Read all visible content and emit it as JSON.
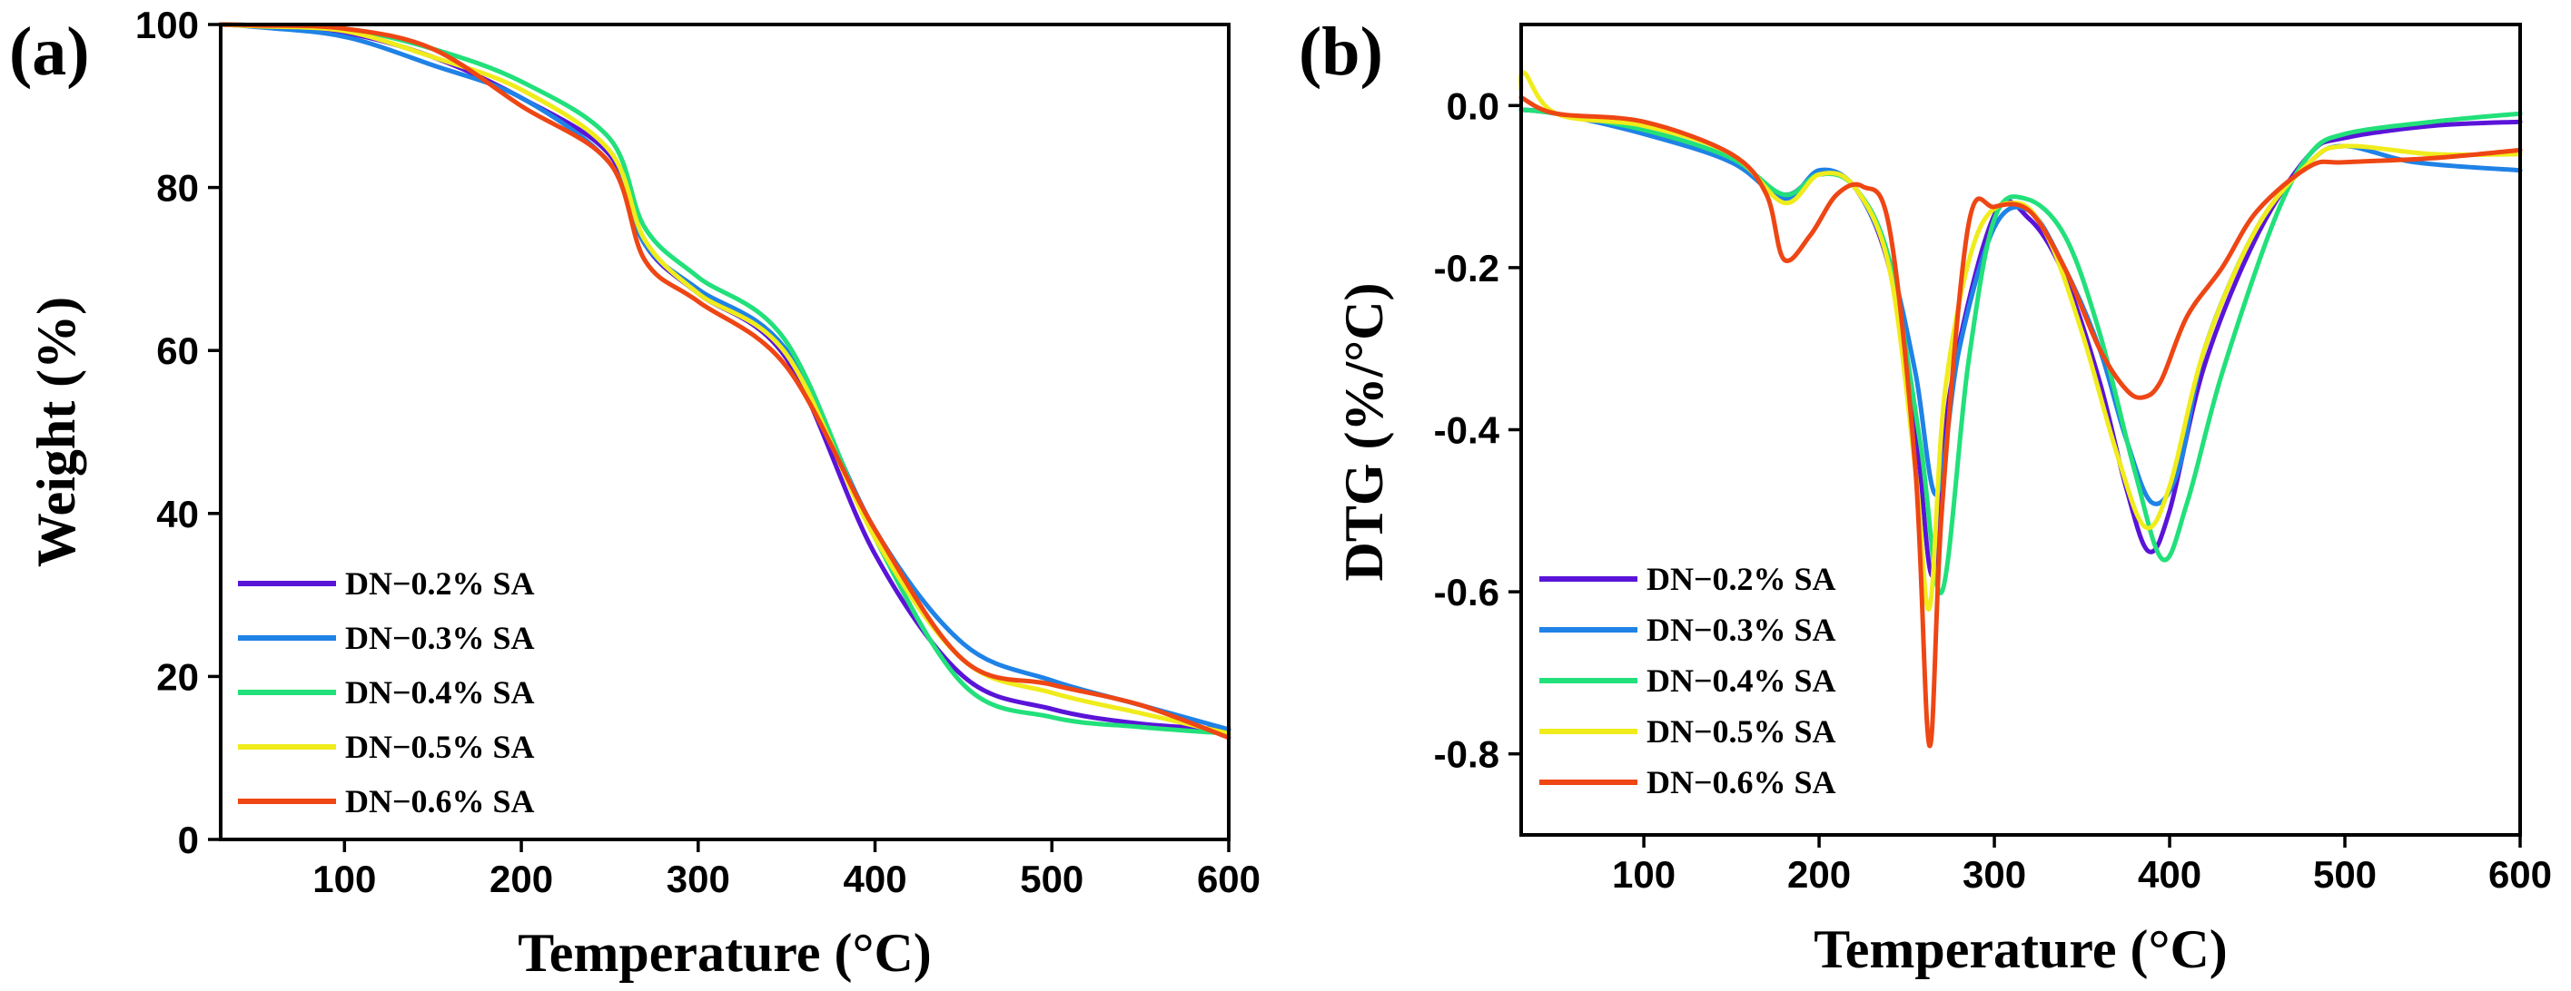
{
  "chart_data": [
    {
      "type": "line",
      "panel_label": "(a)",
      "title": "",
      "xlabel": "Temperature (°C)",
      "ylabel": "Weight (%)",
      "xlim": [
        30,
        600
      ],
      "ylim": [
        0,
        100
      ],
      "xticks": [
        100,
        200,
        300,
        400,
        500,
        600
      ],
      "yticks": [
        0,
        20,
        40,
        60,
        80,
        100
      ],
      "legend_position": "bottom-left",
      "grid": false,
      "series": [
        {
          "name": "DN−0.2% SA",
          "color": "#5a14d8",
          "x": [
            30,
            50,
            100,
            150,
            200,
            250,
            270,
            300,
            350,
            400,
            450,
            500,
            550,
            600
          ],
          "y": [
            100,
            99.8,
            99,
            96,
            91,
            84,
            73,
            67,
            59,
            35,
            20,
            16,
            14.2,
            13.5
          ]
        },
        {
          "name": "DN−0.3% SA",
          "color": "#1f82e6",
          "x": [
            30,
            50,
            100,
            150,
            200,
            250,
            270,
            300,
            350,
            400,
            450,
            500,
            550,
            600
          ],
          "y": [
            100,
            99.7,
            98.5,
            95,
            91,
            83,
            73,
            67.5,
            60,
            38,
            24,
            19.5,
            16.5,
            13.5
          ]
        },
        {
          "name": "DN−0.4% SA",
          "color": "#22e07a",
          "x": [
            30,
            50,
            100,
            150,
            200,
            250,
            270,
            300,
            350,
            400,
            450,
            500,
            550,
            600
          ],
          "y": [
            100,
            99.9,
            99.5,
            97,
            93,
            86,
            75,
            69,
            61,
            37,
            19,
            15,
            13.8,
            13
          ]
        },
        {
          "name": "DN−0.5% SA",
          "color": "#f0ec1c",
          "x": [
            30,
            50,
            100,
            150,
            200,
            250,
            270,
            300,
            350,
            400,
            450,
            500,
            550,
            600
          ],
          "y": [
            100,
            99.8,
            99.2,
            96,
            92,
            84.5,
            73.5,
            67,
            59.5,
            37,
            22,
            18,
            15.5,
            13
          ]
        },
        {
          "name": "DN−0.6% SA",
          "color": "#ee4614",
          "x": [
            30,
            50,
            100,
            150,
            200,
            250,
            270,
            300,
            350,
            400,
            450,
            500,
            550,
            600
          ],
          "y": [
            100,
            99.9,
            99.5,
            97,
            90,
            83,
            71,
            66,
            58,
            38,
            22,
            19,
            16.5,
            12.5
          ]
        }
      ]
    },
    {
      "type": "line",
      "panel_label": "(b)",
      "title": "",
      "xlabel": "Temperature (°C)",
      "ylabel": "DTG  (%/°C)",
      "xlim": [
        30,
        600
      ],
      "ylim": [
        -0.9,
        0.1
      ],
      "xticks": [
        100,
        200,
        300,
        400,
        500,
        600
      ],
      "yticks": [
        0.0,
        -0.2,
        -0.4,
        -0.6,
        -0.8
      ],
      "ytick_labels": [
        "0.0",
        "-0.2",
        "-0.4",
        "-0.6",
        "-0.8"
      ],
      "legend_position": "bottom-left",
      "grid": false,
      "series": [
        {
          "name": "DN−0.2% SA",
          "color": "#5a14d8",
          "x": [
            30,
            50,
            100,
            150,
            180,
            200,
            220,
            240,
            255,
            265,
            275,
            300,
            320,
            340,
            360,
            375,
            388,
            400,
            420,
            450,
            480,
            500,
            550,
            600
          ],
          "y": [
            -0.005,
            -0.01,
            -0.03,
            -0.07,
            -0.11,
            -0.085,
            -0.1,
            -0.2,
            -0.4,
            -0.58,
            -0.35,
            -0.135,
            -0.14,
            -0.21,
            -0.34,
            -0.47,
            -0.55,
            -0.5,
            -0.32,
            -0.16,
            -0.06,
            -0.04,
            -0.025,
            -0.02
          ]
        },
        {
          "name": "DN−0.3% SA",
          "color": "#1f82e6",
          "x": [
            30,
            50,
            100,
            150,
            180,
            200,
            220,
            240,
            255,
            267,
            280,
            300,
            320,
            340,
            360,
            375,
            390,
            405,
            420,
            450,
            480,
            500,
            540,
            600
          ],
          "y": [
            -0.005,
            -0.01,
            -0.035,
            -0.07,
            -0.115,
            -0.08,
            -0.1,
            -0.19,
            -0.33,
            -0.48,
            -0.3,
            -0.15,
            -0.13,
            -0.2,
            -0.3,
            -0.41,
            -0.49,
            -0.45,
            -0.3,
            -0.15,
            -0.07,
            -0.05,
            -0.07,
            -0.08
          ]
        },
        {
          "name": "DN−0.4% SA",
          "color": "#22e07a",
          "x": [
            30,
            50,
            100,
            150,
            180,
            200,
            220,
            240,
            258,
            270,
            285,
            300,
            318,
            340,
            360,
            380,
            396,
            410,
            430,
            460,
            480,
            500,
            550,
            600
          ],
          "y": [
            -0.005,
            -0.01,
            -0.03,
            -0.065,
            -0.11,
            -0.085,
            -0.1,
            -0.19,
            -0.42,
            -0.6,
            -0.32,
            -0.14,
            -0.115,
            -0.16,
            -0.28,
            -0.45,
            -0.56,
            -0.49,
            -0.33,
            -0.14,
            -0.06,
            -0.035,
            -0.02,
            -0.01
          ]
        },
        {
          "name": "DN−0.5% SA",
          "color": "#f0ec1c",
          "x": [
            30,
            32,
            50,
            100,
            150,
            180,
            200,
            220,
            240,
            255,
            263,
            272,
            290,
            312,
            330,
            350,
            370,
            386,
            400,
            420,
            450,
            480,
            500,
            550,
            600
          ],
          "y": [
            0.02,
            0.04,
            -0.01,
            -0.025,
            -0.06,
            -0.12,
            -0.085,
            -0.1,
            -0.2,
            -0.45,
            -0.62,
            -0.35,
            -0.16,
            -0.12,
            -0.16,
            -0.28,
            -0.43,
            -0.52,
            -0.47,
            -0.3,
            -0.15,
            -0.07,
            -0.05,
            -0.06,
            -0.06
          ]
        },
        {
          "name": "DN−0.6% SA",
          "color": "#ee4614",
          "x": [
            30,
            50,
            100,
            150,
            170,
            180,
            195,
            210,
            225,
            240,
            255,
            263,
            270,
            285,
            300,
            320,
            340,
            360,
            375,
            385,
            395,
            410,
            430,
            450,
            480,
            500,
            550,
            600
          ],
          "y": [
            0.01,
            -0.01,
            -0.02,
            -0.06,
            -0.11,
            -0.19,
            -0.16,
            -0.11,
            -0.1,
            -0.15,
            -0.45,
            -0.79,
            -0.5,
            -0.15,
            -0.125,
            -0.13,
            -0.2,
            -0.3,
            -0.35,
            -0.36,
            -0.34,
            -0.26,
            -0.2,
            -0.13,
            -0.075,
            -0.07,
            -0.065,
            -0.055
          ]
        }
      ]
    }
  ]
}
